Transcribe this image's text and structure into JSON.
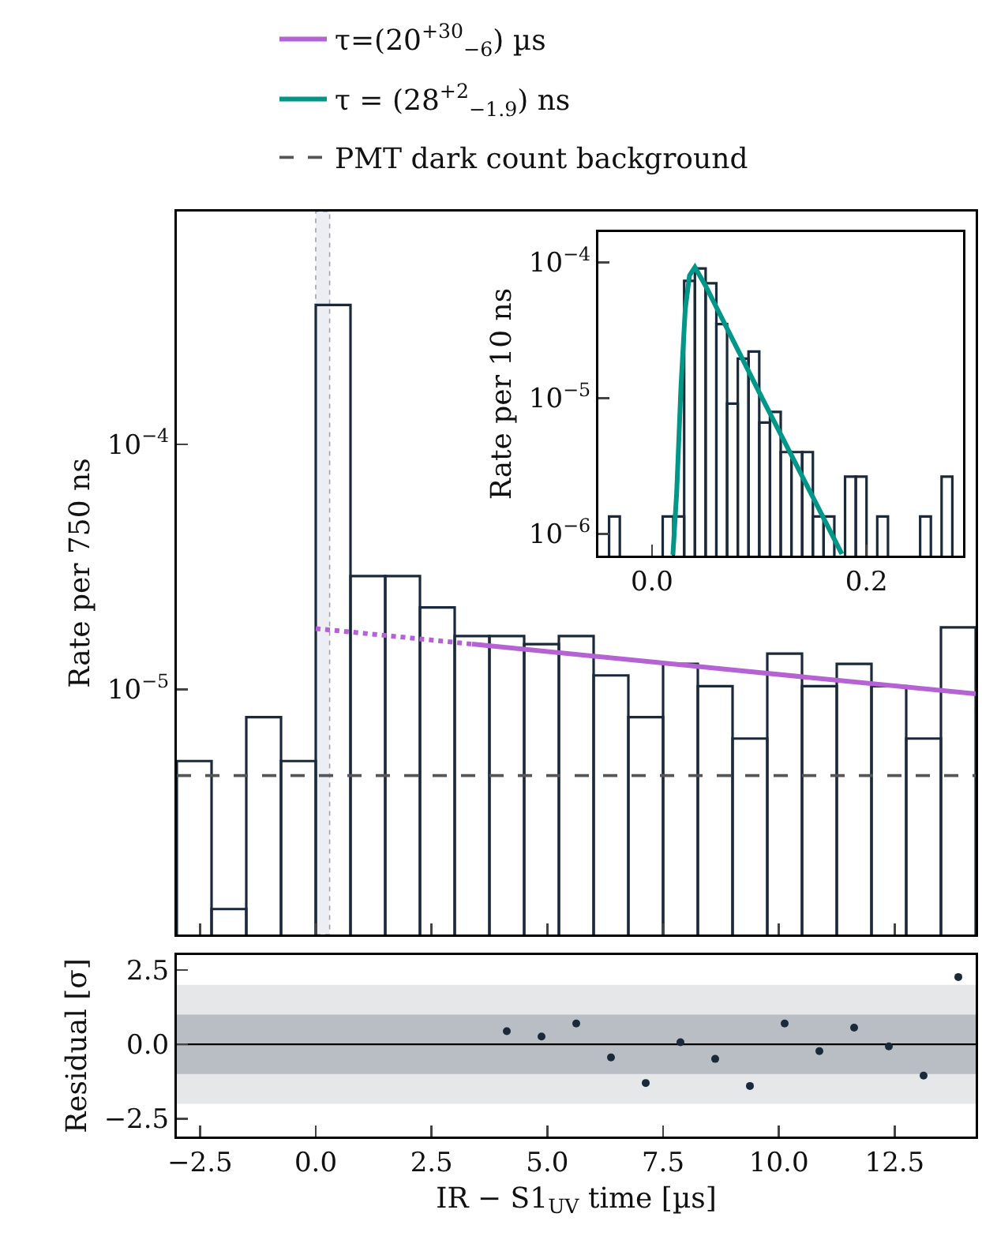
{
  "chart_data": [
    {
      "type": "histogram",
      "ylabel": "Rate per 750 ns",
      "color": "#1b2a3a",
      "log": "y",
      "legend": "top",
      "tick_labels": "y",
      "bins": [
        -3,
        -2.25,
        -1.5,
        -0.75,
        0,
        0.75,
        1.5,
        2.25,
        3,
        3.75,
        4.5,
        5.25,
        6,
        6.75,
        7.5,
        8.25,
        9,
        9.75,
        10.5,
        11.25,
        12,
        12.75,
        13.5,
        14.25
      ],
      "values": [
        5.1e-06,
        1.27e-06,
        7.7e-06,
        5.1e-06,
        0.00037,
        2.9e-05,
        2.9e-05,
        2.16e-05,
        1.65e-05,
        1.65e-05,
        1.53e-05,
        1.65e-05,
        1.14e-05,
        7.7e-06,
        1.27e-05,
        1.03e-05,
        6.3e-06,
        1.4e-05,
        1.03e-05,
        1.27e-05,
        1.03e-05,
        6.3e-06,
        1.79e-05
      ],
      "xlim": [
        -3,
        14.25
      ],
      "ylim": [
        1e-06,
        0.00089
      ],
      "yticks": [
        {
          "value": 0.0001,
          "label": "10$^{−4}$"
        },
        {
          "value": 1e-05,
          "label": "10$^{−5}$"
        }
      ],
      "series": [
        {
          "type": "line",
          "line_style": "dotted",
          "color": "#b462d4",
          "x": [
            0,
            1.5,
            3.375
          ],
          "values": [
            1.77e-05,
            1.66e-05,
            1.53e-05
          ]
        },
        {
          "type": "line",
          "name": "τ=(20$^{+30}$$_{−6}$) µs",
          "color": "#b462d4",
          "x": [
            3.375,
            9,
            14.25
          ],
          "values": [
            1.53e-05,
            1.2e-05,
            9.6e-06
          ]
        }
      ],
      "ref_lines": [
        {
          "axis": "y",
          "value": 4.45e-06,
          "label": "PMT dark count background",
          "color": "#555555",
          "line_style": "dashed"
        }
      ],
      "bands": [
        {
          "axis": "x",
          "from": 0,
          "to": 0.3,
          "color": "#eceef4"
        }
      ]
    },
    {
      "type": "histogram",
      "ylabel": "Rate per 10 ns",
      "color": "#1b2a3a",
      "log": "y",
      "legend": "top",
      "bins": [
        -0.05,
        -0.04,
        -0.03,
        -0.02,
        -0.01,
        0,
        0.01,
        0.02,
        0.03,
        0.04,
        0.05,
        0.06,
        0.07,
        0.08,
        0.09,
        0.1,
        0.11,
        0.12,
        0.13,
        0.14,
        0.15,
        0.16,
        0.17,
        0.18,
        0.19,
        0.2,
        0.21,
        0.22,
        0.23,
        0.24,
        0.25,
        0.26,
        0.27,
        0.28,
        0.29
      ],
      "values": [
        null,
        1.34e-06,
        null,
        null,
        null,
        null,
        1.34e-06,
        1.34e-06,
        7.3e-05,
        9e-05,
        7e-05,
        3.5e-05,
        9.1e-06,
        1.95e-05,
        2.2e-05,
        6.6e-06,
        7.9e-06,
        4e-06,
        4e-06,
        4e-06,
        1.34e-06,
        1.34e-06,
        null,
        2.64e-06,
        2.64e-06,
        null,
        1.34e-06,
        null,
        null,
        null,
        1.34e-06,
        null,
        2.64e-06,
        null
      ],
      "xlim": [
        -0.05,
        0.29
      ],
      "ylim": [
        6.9e-07,
        0.000167
      ],
      "xticks": [
        {
          "value": 0,
          "label": "0.0"
        },
        0.2
      ],
      "yticks": [
        {
          "value": 0.0001,
          "label": "10$^{−4}$"
        },
        {
          "value": 1e-05,
          "label": "10$^{−5}$"
        },
        {
          "value": 1e-06,
          "label": "10$^{−6}$"
        }
      ],
      "series": [
        {
          "type": "line",
          "name": "τ = (28$^{+2}$$_{−1.9}$) ns",
          "color": "#009688",
          "x": [
            0.0195,
            0.023,
            0.027,
            0.031,
            0.035,
            0.04,
            0.05,
            0.1,
            0.15,
            0.177
          ],
          "values": [
            7e-07,
            2e-06,
            1.2e-05,
            4.5e-05,
            8e-05,
            9.2e-05,
            6.7e-05,
            1.1e-05,
            1.86e-06,
            7.1e-07
          ]
        }
      ]
    },
    {
      "type": "scatter",
      "xlabel": "IR − S1$_{UV}$ time [µs]",
      "ylabel": "Residual [σ]",
      "color": "#1b2a3a",
      "marker": "circle",
      "x": [
        4.125,
        4.875,
        5.625,
        6.375,
        7.125,
        7.875,
        8.625,
        9.375,
        10.125,
        10.875,
        11.625,
        12.375,
        13.125,
        13.875
      ],
      "values": [
        0.44,
        0.26,
        0.7,
        -0.44,
        -1.3,
        0.07,
        -0.49,
        -1.4,
        0.7,
        -0.23,
        0.56,
        -0.07,
        -1.05,
        2.26
      ],
      "xlim": [
        -3,
        14.25
      ],
      "ylim": [
        -3.1,
        3
      ],
      "xticks": [
        {
          "value": -2.5,
          "label": "−2.5"
        },
        {
          "value": 0,
          "label": "0.0"
        },
        2.5,
        {
          "value": 5,
          "label": "5.0"
        },
        7.5,
        {
          "value": 10,
          "label": "10.0"
        },
        12.5
      ],
      "yticks": [
        2.5,
        {
          "value": 0,
          "label": "0.0"
        },
        {
          "value": -2.5,
          "label": "−2.5"
        }
      ],
      "ref_lines": [
        {
          "axis": "y",
          "value": 0,
          "color": "#000000",
          "line_style": "solid"
        }
      ],
      "bands": [
        {
          "axis": "y",
          "from": -2,
          "to": 2,
          "color": "#e6e7e9"
        },
        {
          "axis": "y",
          "from": -1,
          "to": 1,
          "color": "#b9bec5"
        }
      ]
    }
  ]
}
